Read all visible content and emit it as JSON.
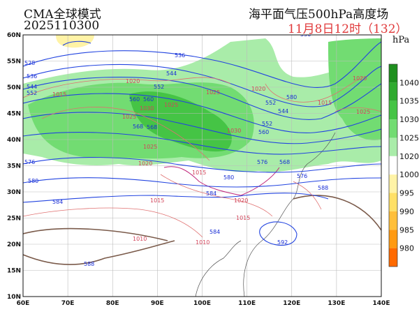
{
  "header": {
    "model": "CMA全球模式",
    "run": "2025110300",
    "title": "海平面气压500hPa高度场",
    "valid": "11月8日12时（132）"
  },
  "colorbar": {
    "unit": "hPa",
    "levels": [
      "1040",
      "1035",
      "1030",
      "1025",
      "1020",
      "1000",
      "995",
      "990",
      "985",
      "980"
    ],
    "colors": [
      "#1e8f1e",
      "#2faa2f",
      "#45c445",
      "#72dc72",
      "#a9eca9",
      "#ffffff",
      "#fff3a6",
      "#ffe066",
      "#ffbf3a",
      "#ff9a12",
      "#ff6a00"
    ]
  },
  "axes": {
    "lat_labels": [
      "60N",
      "55N",
      "50N",
      "45N",
      "40N",
      "35N",
      "30N",
      "25N",
      "20N",
      "15N",
      "10N"
    ],
    "lon_labels": [
      "60E",
      "70E",
      "80E",
      "90E",
      "100E",
      "110E",
      "120E",
      "130E",
      "140E"
    ]
  },
  "height_labels": [
    "528",
    "536",
    "544",
    "552",
    "560",
    "568",
    "576",
    "580",
    "584",
    "536",
    "544",
    "552",
    "560",
    "568",
    "576",
    "580",
    "584",
    "588",
    "592",
    "588",
    "584",
    "552",
    "560",
    "568",
    "576",
    "580",
    "536",
    "544",
    "552"
  ],
  "pressure_labels": [
    "1015",
    "1020",
    "1025",
    "1030",
    "1025",
    "1025",
    "1030",
    "1020",
    "1025",
    "1020",
    "1020",
    "1015",
    "1015",
    "1010",
    "1010",
    "1015",
    "1020",
    "1025",
    "1015"
  ]
}
